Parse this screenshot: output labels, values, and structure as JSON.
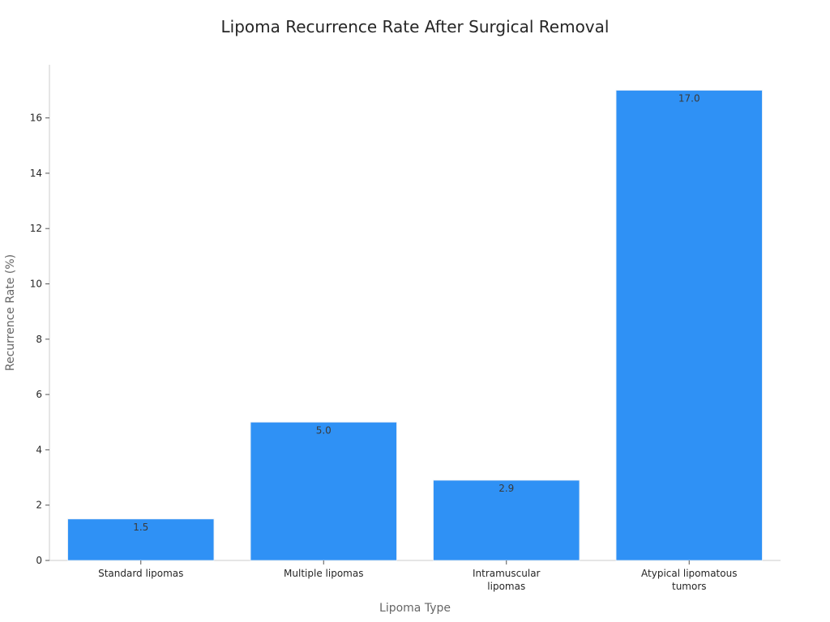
{
  "chart_data": {
    "type": "bar",
    "title": "Lipoma Recurrence Rate After Surgical Removal",
    "xlabel": "Lipoma Type",
    "ylabel": "Recurrence Rate (%)",
    "categories": [
      [
        "Standard lipomas"
      ],
      [
        "Multiple lipomas"
      ],
      [
        "Intramuscular",
        "lipomas"
      ],
      [
        "Atypical lipomatous",
        "tumors"
      ]
    ],
    "values": [
      1.5,
      5.0,
      2.9,
      17.0
    ],
    "value_labels": [
      "1.5",
      "5.0",
      "2.9",
      "17.0"
    ],
    "yticks": [
      0,
      2,
      4,
      6,
      8,
      10,
      12,
      14,
      16
    ],
    "ylim": [
      0,
      17.9
    ],
    "bar_color": "#2f91f5",
    "grid": false,
    "legend": false
  }
}
